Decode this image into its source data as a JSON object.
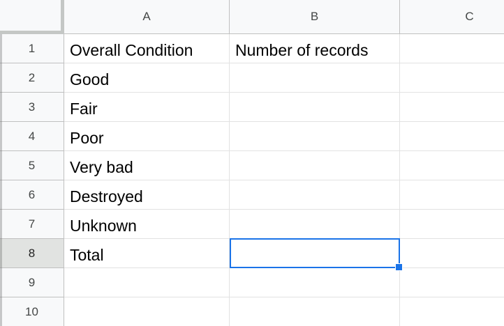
{
  "sheet": {
    "columns": [
      "A",
      "B",
      "C"
    ],
    "rows": [
      "1",
      "2",
      "3",
      "4",
      "5",
      "6",
      "7",
      "8",
      "9",
      "10"
    ],
    "cells": [
      [
        "Overall Condition",
        "Number of records",
        ""
      ],
      [
        "Good",
        "",
        ""
      ],
      [
        "Fair",
        "",
        ""
      ],
      [
        "Poor",
        "",
        ""
      ],
      [
        "Very bad",
        "",
        ""
      ],
      [
        "Destroyed",
        "",
        ""
      ],
      [
        "Unknown",
        "",
        ""
      ],
      [
        "Total",
        "",
        ""
      ],
      [
        "",
        "",
        ""
      ],
      [
        "",
        "",
        ""
      ]
    ],
    "selected_cell": "B8",
    "colors": {
      "selection": "#1a73e8",
      "header_bg": "#f8f9fa",
      "selected_header_bg": "#e1e3e1",
      "gridline": "#e2e2e2"
    }
  }
}
